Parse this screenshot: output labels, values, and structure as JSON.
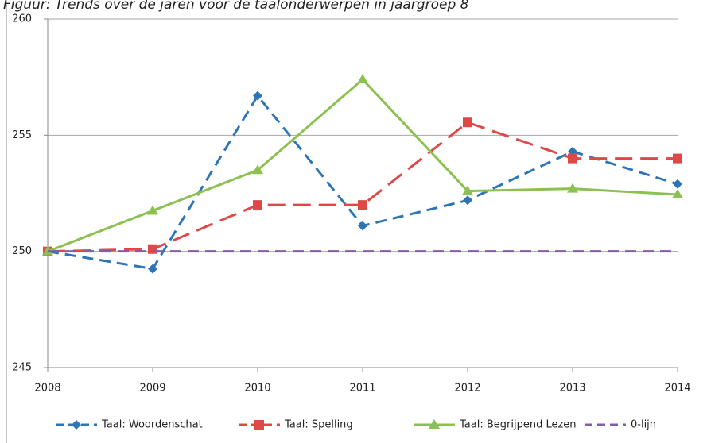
{
  "chart_data": {
    "type": "line",
    "title": "Figuur: Trends over de jaren voor de taalonderwerpen in jaargroep 8",
    "categories": [
      "2008",
      "2009",
      "2010",
      "2011",
      "2012",
      "2013",
      "2014"
    ],
    "series": [
      {
        "name": "Taal: Woordenschat",
        "color": "#2e75b6",
        "line_style": "dashed",
        "marker": "diamond",
        "values": [
          250,
          249.25,
          256.7,
          251.1,
          252.2,
          254.3,
          252.9
        ]
      },
      {
        "name": "Taal: Spelling",
        "color": "#e04848",
        "line_style": "dashed",
        "marker": "square",
        "values": [
          250,
          250.1,
          252,
          252,
          255.55,
          254,
          254
        ]
      },
      {
        "name": "Taal: Begrijpend Lezen",
        "color": "#8cc152",
        "line_style": "solid",
        "marker": "triangle",
        "values": [
          250,
          251.75,
          253.5,
          257.4,
          252.6,
          252.7,
          252.45
        ]
      },
      {
        "name": "0-lijn",
        "color": "#7f5fa8",
        "line_style": "dashed",
        "marker": null,
        "values": [
          250,
          250,
          250,
          250,
          250,
          250,
          250
        ]
      }
    ],
    "ylim": [
      245,
      260
    ],
    "yticks": [
      245,
      250,
      255,
      260
    ],
    "grid": true,
    "legend": "bottom"
  }
}
